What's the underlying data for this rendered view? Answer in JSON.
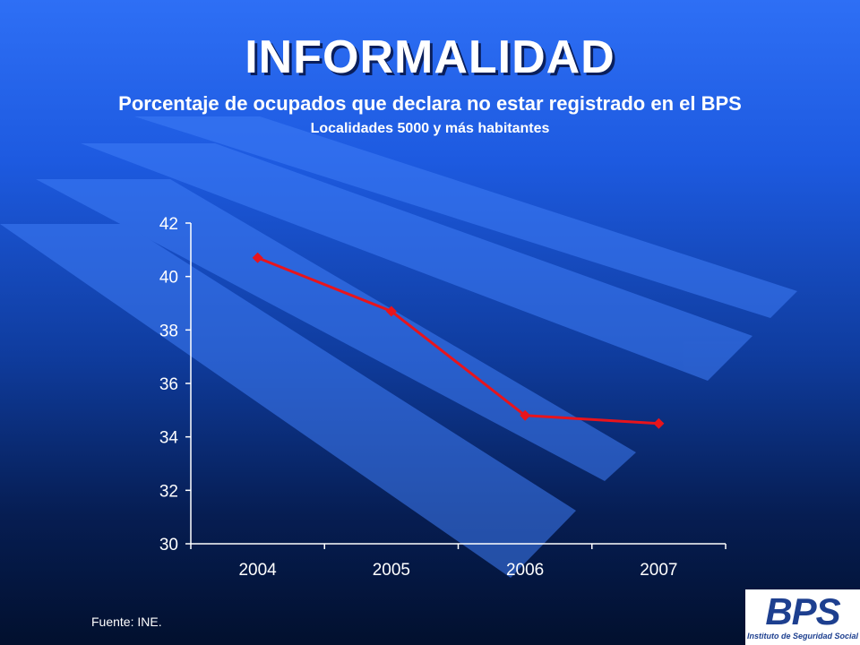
{
  "slide": {
    "title": "INFORMALIDAD",
    "subtitle": "Porcentaje de ocupados que declara no estar registrado en el BPS",
    "subtitle2": "Localidades 5000 y más habitantes",
    "source": "Fuente: INE.",
    "logo_mark": "BPS",
    "logo_text": "Instituto de Seguridad Social"
  },
  "colors": {
    "line": "#e8141c",
    "axis": "#ffffff",
    "brand": "#1d3f8f"
  },
  "chart_data": {
    "type": "line",
    "categories": [
      "2004",
      "2005",
      "2006",
      "2007"
    ],
    "series": [
      {
        "values": [
          40.7,
          38.7,
          34.8,
          34.5
        ]
      }
    ],
    "yticks": [
      "42",
      "40",
      "38",
      "36",
      "34",
      "32",
      "30"
    ],
    "ylim": [
      30,
      42
    ],
    "grid": false,
    "legend": "none",
    "marker": "diamond"
  }
}
